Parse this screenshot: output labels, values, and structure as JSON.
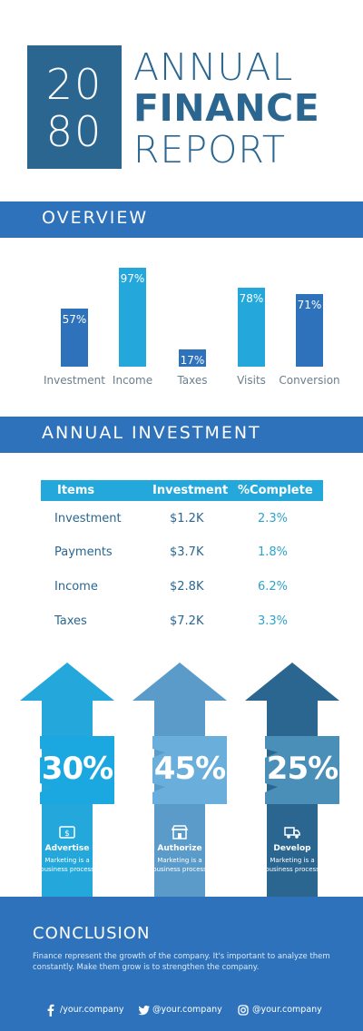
{
  "header": {
    "year_top": "20",
    "year_bottom": "80",
    "title_line1": "ANNUAL",
    "title_line2": "FINANCE",
    "title_line3": "REPORT"
  },
  "overview": {
    "title": "OVERVIEW"
  },
  "chart_data": {
    "type": "bar",
    "categories": [
      "Investment",
      "Income",
      "Taxes",
      "Visits",
      "Conversion"
    ],
    "values": [
      57,
      97,
      17,
      78,
      71
    ],
    "value_labels": [
      "57%",
      "97%",
      "17%",
      "78%",
      "71%"
    ],
    "colors": [
      "#2d72ba",
      "#24a8dc",
      "#2d72ba",
      "#24a8dc",
      "#2d72ba"
    ],
    "ylim": [
      0,
      100
    ],
    "grid": false
  },
  "investment": {
    "title": "ANNUAL INVESTMENT",
    "columns": [
      "Items",
      "Investment",
      "%Complete"
    ],
    "rows": [
      {
        "item": "Investment",
        "investment": "$1.2K",
        "complete": "2.3%"
      },
      {
        "item": "Payments",
        "investment": "$3.7K",
        "complete": "1.8%"
      },
      {
        "item": "Income",
        "investment": "$2.8K",
        "complete": "6.2%"
      },
      {
        "item": "Taxes",
        "investment": "$7.2K",
        "complete": "3.3%"
      }
    ]
  },
  "arrows": [
    {
      "percent": "30%",
      "value": 30,
      "title": "Advertise",
      "desc_line1": "Marketing is a",
      "desc_line2": "business process",
      "icon": "dollar-bill-icon",
      "color": "#24a8dc",
      "box_color": "#1ba8e0"
    },
    {
      "percent": "45%",
      "value": 45,
      "title": "Authorize",
      "desc_line1": "Marketing is a",
      "desc_line2": "business process",
      "icon": "store-icon",
      "color": "#5b9bc9",
      "box_color": "#6aaedb"
    },
    {
      "percent": "25%",
      "value": 25,
      "title": "Develop",
      "desc_line1": "Marketing is a",
      "desc_line2": "business process",
      "icon": "truck-icon",
      "color": "#2a6690",
      "box_color": "#4a8fb8"
    }
  ],
  "conclusion": {
    "title": "CONCLUSION",
    "body": "Finance represent the growth of the company. It's important to analyze them constantly. Make them grow is to strengthen the company.",
    "socials": [
      {
        "icon": "facebook-icon",
        "text": "/your.company"
      },
      {
        "icon": "twitter-icon",
        "text": "@your.company"
      },
      {
        "icon": "instagram-icon",
        "text": "@your.company"
      }
    ]
  }
}
